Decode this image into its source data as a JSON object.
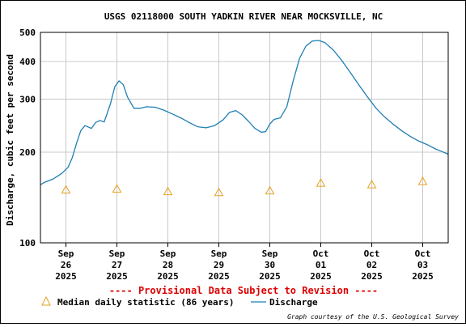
{
  "chart_data": {
    "type": "line",
    "title": "USGS 02118000 SOUTH YADKIN RIVER NEAR MOCKSVILLE, NC",
    "ylabel": "Discharge, cubic feet per second",
    "y_scale": "log",
    "ylim": [
      100,
      500
    ],
    "y_ticks": [
      {
        "value": 100,
        "label": "100"
      },
      {
        "value": 200,
        "label": "200"
      },
      {
        "value": 300,
        "label": "300"
      },
      {
        "value": 400,
        "label": "400"
      },
      {
        "value": 500,
        "label": "500"
      }
    ],
    "xlim": [
      "2025-09-25T12:00",
      "2025-10-03T12:00"
    ],
    "x_ticks": [
      {
        "at": "2025-09-26T00:00",
        "month": "Sep",
        "day": "26",
        "year": "2025"
      },
      {
        "at": "2025-09-27T00:00",
        "month": "Sep",
        "day": "27",
        "year": "2025"
      },
      {
        "at": "2025-09-28T00:00",
        "month": "Sep",
        "day": "28",
        "year": "2025"
      },
      {
        "at": "2025-09-29T00:00",
        "month": "Sep",
        "day": "29",
        "year": "2025"
      },
      {
        "at": "2025-09-30T00:00",
        "month": "Sep",
        "day": "30",
        "year": "2025"
      },
      {
        "at": "2025-10-01T00:00",
        "month": "Oct",
        "day": "01",
        "year": "2025"
      },
      {
        "at": "2025-10-02T00:00",
        "month": "Oct",
        "day": "02",
        "year": "2025"
      },
      {
        "at": "2025-10-03T00:00",
        "month": "Oct",
        "day": "03",
        "year": "2025"
      }
    ],
    "grid": true,
    "series": [
      {
        "name": "Discharge",
        "kind": "line",
        "color": "#1f7fb4",
        "points": [
          [
            "2025-09-25T12:00",
            156
          ],
          [
            "2025-09-25T14:00",
            159
          ],
          [
            "2025-09-25T18:00",
            163
          ],
          [
            "2025-09-25T22:00",
            170
          ],
          [
            "2025-09-26T01:00",
            178
          ],
          [
            "2025-09-26T03:00",
            192
          ],
          [
            "2025-09-26T05:00",
            214
          ],
          [
            "2025-09-26T07:00",
            236
          ],
          [
            "2025-09-26T09:00",
            245
          ],
          [
            "2025-09-26T12:00",
            240
          ],
          [
            "2025-09-26T14:00",
            251
          ],
          [
            "2025-09-26T16:00",
            255
          ],
          [
            "2025-09-26T18:00",
            252
          ],
          [
            "2025-09-26T21:00",
            290
          ],
          [
            "2025-09-26T23:00",
            330
          ],
          [
            "2025-09-27T01:00",
            345
          ],
          [
            "2025-09-27T03:00",
            335
          ],
          [
            "2025-09-27T05:00",
            305
          ],
          [
            "2025-09-27T08:00",
            280
          ],
          [
            "2025-09-27T11:00",
            280
          ],
          [
            "2025-09-27T14:00",
            283
          ],
          [
            "2025-09-27T18:00",
            282
          ],
          [
            "2025-09-27T22:00",
            276
          ],
          [
            "2025-09-28T02:00",
            268
          ],
          [
            "2025-09-28T06:00",
            260
          ],
          [
            "2025-09-28T10:00",
            251
          ],
          [
            "2025-09-28T14:00",
            243
          ],
          [
            "2025-09-28T18:00",
            241
          ],
          [
            "2025-09-28T22:00",
            245
          ],
          [
            "2025-09-29T02:00",
            256
          ],
          [
            "2025-09-29T05:00",
            271
          ],
          [
            "2025-09-29T08:00",
            275
          ],
          [
            "2025-09-29T11:00",
            266
          ],
          [
            "2025-09-29T14:00",
            253
          ],
          [
            "2025-09-29T17:00",
            240
          ],
          [
            "2025-09-29T20:00",
            233
          ],
          [
            "2025-09-29T22:00",
            234
          ],
          [
            "2025-09-30T00:00",
            248
          ],
          [
            "2025-09-30T02:00",
            257
          ],
          [
            "2025-09-30T05:00",
            260
          ],
          [
            "2025-09-30T08:00",
            283
          ],
          [
            "2025-09-30T11:00",
            345
          ],
          [
            "2025-09-30T14:00",
            410
          ],
          [
            "2025-09-30T17:00",
            450
          ],
          [
            "2025-09-30T20:00",
            468
          ],
          [
            "2025-09-30T23:00",
            470
          ],
          [
            "2025-10-01T02:00",
            462
          ],
          [
            "2025-10-01T06:00",
            436
          ],
          [
            "2025-10-01T10:00",
            402
          ],
          [
            "2025-10-01T14:00",
            367
          ],
          [
            "2025-10-01T18:00",
            334
          ],
          [
            "2025-10-01T22:00",
            305
          ],
          [
            "2025-10-02T02:00",
            280
          ],
          [
            "2025-10-02T06:00",
            262
          ],
          [
            "2025-10-02T10:00",
            248
          ],
          [
            "2025-10-02T14:00",
            236
          ],
          [
            "2025-10-02T18:00",
            226
          ],
          [
            "2025-10-02T22:00",
            218
          ],
          [
            "2025-10-03T02:00",
            212
          ],
          [
            "2025-10-03T06:00",
            205
          ],
          [
            "2025-10-03T09:00",
            201
          ],
          [
            "2025-10-03T12:00",
            197
          ]
        ]
      },
      {
        "name": "Median daily statistic (86 years)",
        "kind": "triangles",
        "color": "#e6a020",
        "points": [
          [
            "2025-09-26T00:00",
            150
          ],
          [
            "2025-09-27T00:00",
            151
          ],
          [
            "2025-09-28T00:00",
            148
          ],
          [
            "2025-09-29T00:00",
            147
          ],
          [
            "2025-09-30T00:00",
            149
          ],
          [
            "2025-10-01T00:00",
            158
          ],
          [
            "2025-10-02T00:00",
            156
          ],
          [
            "2025-10-03T00:00",
            160
          ]
        ]
      }
    ]
  },
  "notice": "---- Provisional Data Subject to Revision ----",
  "notice_color": "#dd0000",
  "legend": {
    "median_label": "Median daily statistic (86 years)",
    "discharge_label": "Discharge"
  },
  "credit": "Graph courtesy of the U.S. Geological Survey"
}
